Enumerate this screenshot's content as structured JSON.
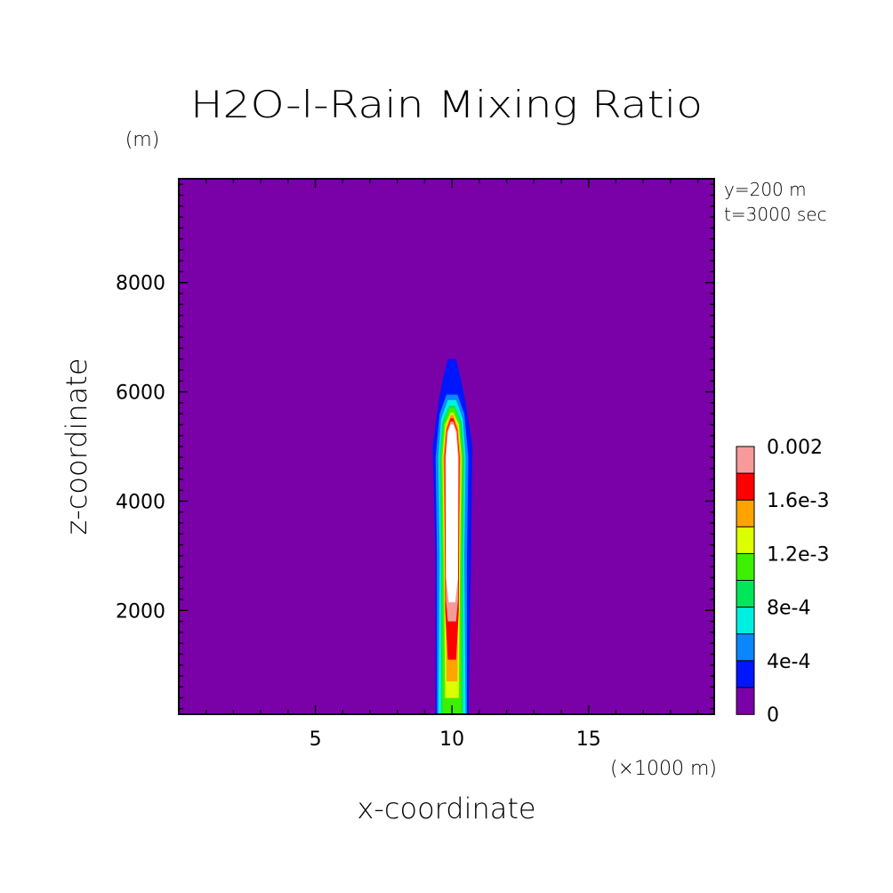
{
  "chart_data": {
    "type": "heatmap",
    "title": "H2O-l-Rain Mixing Ratio",
    "xlabel": "x-coordinate",
    "ylabel": "z-coordinate",
    "x_unit": "(×1000 m)",
    "y_unit": "(m)",
    "annotations": [
      "y=200 m",
      "t=3000 sec"
    ],
    "xlim": [
      0,
      19.6
    ],
    "ylim": [
      100,
      9900
    ],
    "x_ticks": [
      5,
      10,
      15
    ],
    "y_ticks": [
      2000,
      4000,
      6000,
      8000
    ],
    "colorbar": {
      "levels": [
        0,
        0.0002,
        0.0004,
        0.0006,
        0.0008,
        0.001,
        0.0012,
        0.0014,
        0.0016,
        0.0018,
        0.002,
        0.0022
      ],
      "colors": [
        "#7a00a8",
        "#0016ff",
        "#0a87ff",
        "#00f0e0",
        "#00e65a",
        "#3cf000",
        "#dcff00",
        "#ffa300",
        "#ff0000",
        "#f79a9a",
        "#ffffff"
      ],
      "tick_labels": [
        "0",
        "4e-4",
        "8e-4",
        "1.2e-3",
        "1.6e-3",
        "0.002"
      ]
    },
    "plume": {
      "center_x": 10,
      "contours": [
        {
          "level": 0.0002,
          "points": [
            [
              9.4,
              100
            ],
            [
              9.4,
              3000
            ],
            [
              9.3,
              5000
            ],
            [
              9.5,
              5800
            ],
            [
              9.7,
              6300
            ],
            [
              9.85,
              6600
            ],
            [
              10.15,
              6600
            ],
            [
              10.3,
              6300
            ],
            [
              10.5,
              5800
            ],
            [
              10.75,
              5000
            ],
            [
              10.7,
              3000
            ],
            [
              10.6,
              100
            ]
          ]
        },
        {
          "level": 0.0004,
          "points": [
            [
              9.45,
              100
            ],
            [
              9.45,
              3000
            ],
            [
              9.4,
              4800
            ],
            [
              9.55,
              5600
            ],
            [
              9.8,
              5950
            ],
            [
              10.2,
              5950
            ],
            [
              10.45,
              5600
            ],
            [
              10.6,
              4800
            ],
            [
              10.55,
              3000
            ],
            [
              10.55,
              100
            ]
          ]
        },
        {
          "level": 0.0006,
          "points": [
            [
              9.5,
              100
            ],
            [
              9.55,
              3000
            ],
            [
              9.5,
              4800
            ],
            [
              9.6,
              5500
            ],
            [
              9.85,
              5850
            ],
            [
              10.15,
              5850
            ],
            [
              10.4,
              5500
            ],
            [
              10.5,
              4800
            ],
            [
              10.45,
              3000
            ],
            [
              10.5,
              100
            ]
          ]
        },
        {
          "level": 0.0008,
          "points": [
            [
              9.6,
              100
            ],
            [
              9.6,
              3000
            ],
            [
              9.55,
              4800
            ],
            [
              9.65,
              5450
            ],
            [
              9.9,
              5750
            ],
            [
              10.1,
              5750
            ],
            [
              10.35,
              5450
            ],
            [
              10.45,
              4800
            ],
            [
              10.4,
              3000
            ],
            [
              10.4,
              100
            ]
          ]
        },
        {
          "level": 0.001,
          "points": [
            [
              9.65,
              100
            ],
            [
              9.65,
              3000
            ],
            [
              9.6,
              4800
            ],
            [
              9.7,
              5400
            ],
            [
              9.9,
              5700
            ],
            [
              10.1,
              5700
            ],
            [
              10.3,
              5400
            ],
            [
              10.4,
              4800
            ],
            [
              10.35,
              3000
            ],
            [
              10.35,
              100
            ]
          ]
        },
        {
          "level": 0.0012,
          "points": [
            [
              9.75,
              400
            ],
            [
              9.7,
              3000
            ],
            [
              9.65,
              4800
            ],
            [
              9.75,
              5400
            ],
            [
              9.95,
              5620
            ],
            [
              10.05,
              5620
            ],
            [
              10.25,
              5400
            ],
            [
              10.35,
              4800
            ],
            [
              10.3,
              3000
            ],
            [
              10.25,
              400
            ]
          ]
        },
        {
          "level": 0.0014,
          "points": [
            [
              9.8,
              700
            ],
            [
              9.75,
              3000
            ],
            [
              9.68,
              4800
            ],
            [
              9.78,
              5350
            ],
            [
              9.95,
              5580
            ],
            [
              10.05,
              5580
            ],
            [
              10.22,
              5350
            ],
            [
              10.32,
              4800
            ],
            [
              10.25,
              3000
            ],
            [
              10.2,
              700
            ]
          ]
        },
        {
          "level": 0.0016,
          "points": [
            [
              9.85,
              1100
            ],
            [
              9.75,
              2000
            ],
            [
              9.72,
              4800
            ],
            [
              9.8,
              5300
            ],
            [
              9.95,
              5520
            ],
            [
              10.05,
              5520
            ],
            [
              10.2,
              5300
            ],
            [
              10.28,
              4800
            ],
            [
              10.25,
              2000
            ],
            [
              10.15,
              1100
            ]
          ]
        },
        {
          "level": 0.0018,
          "points": [
            [
              9.85,
              1800
            ],
            [
              9.78,
              2200
            ],
            [
              9.75,
              4800
            ],
            [
              9.82,
              5280
            ],
            [
              9.95,
              5460
            ],
            [
              10.05,
              5460
            ],
            [
              10.18,
              5280
            ],
            [
              10.25,
              4800
            ],
            [
              10.22,
              2200
            ],
            [
              10.15,
              1800
            ]
          ]
        },
        {
          "level": 0.002,
          "points": [
            [
              9.88,
              2150
            ],
            [
              9.78,
              2600
            ],
            [
              9.78,
              4800
            ],
            [
              9.85,
              5250
            ],
            [
              9.95,
              5400
            ],
            [
              10.05,
              5400
            ],
            [
              10.15,
              5250
            ],
            [
              10.22,
              4800
            ],
            [
              10.22,
              2600
            ],
            [
              10.12,
              2150
            ]
          ]
        }
      ]
    }
  }
}
